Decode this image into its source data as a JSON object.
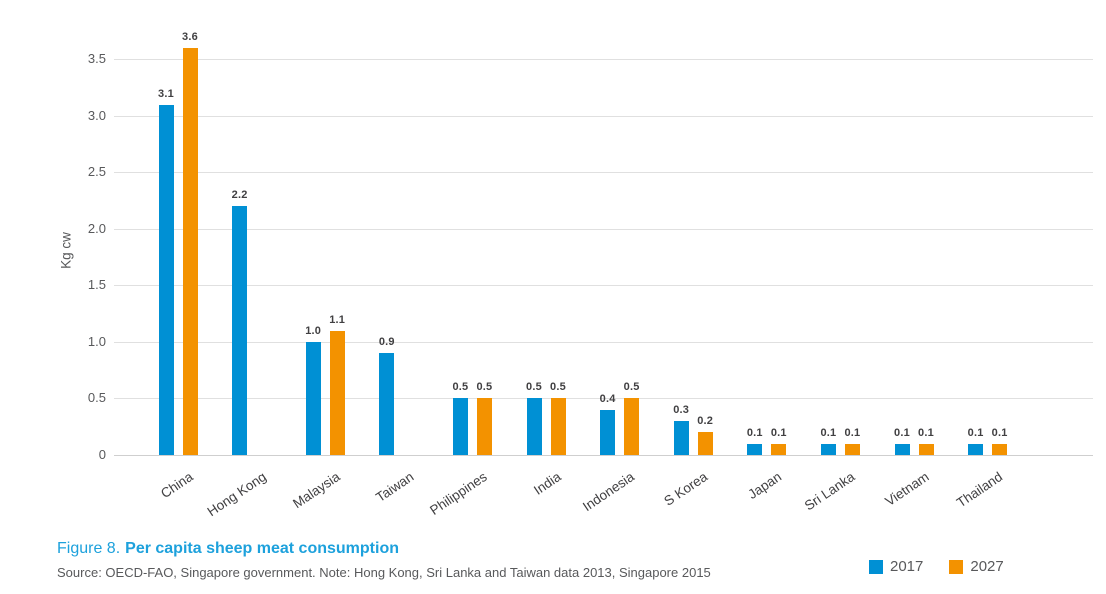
{
  "figure": {
    "caption_prefix": "Figure 8.",
    "caption_title": "Per capita sheep meat consumption",
    "source": "Source: OECD-FAO, Singapore government. Note: Hong Kong, Sri Lanka and Taiwan data 2013, Singapore 2015"
  },
  "chart_data": {
    "type": "bar",
    "title": "Figure 8. Per capita sheep meat consumption",
    "xlabel": "",
    "ylabel": "Kg cw",
    "ylim": [
      0,
      3.75
    ],
    "yticks": [
      0,
      0.5,
      1.0,
      1.5,
      2.0,
      2.5,
      3.0,
      3.5
    ],
    "grid": true,
    "value_labels": true,
    "legend_position": "bottom-right",
    "categories": [
      "China",
      "Hong Kong",
      "Malaysia",
      "Taiwan",
      "Philippines",
      "India",
      "Indonesia",
      "S Korea",
      "Japan",
      "Sri Lanka",
      "Vietnam",
      "Thailand"
    ],
    "series": [
      {
        "name": "2017",
        "color": "#0090d4",
        "values": [
          3.1,
          2.2,
          1.0,
          0.9,
          0.5,
          0.5,
          0.4,
          0.3,
          0.1,
          0.1,
          0.1,
          0.1
        ]
      },
      {
        "name": "2027",
        "color": "#f39200",
        "values": [
          3.6,
          null,
          1.1,
          null,
          0.5,
          0.5,
          0.5,
          0.2,
          0.1,
          0.1,
          0.1,
          0.1
        ]
      }
    ]
  },
  "colors": {
    "bar_2017": "#0090d4",
    "bar_2027": "#f39200",
    "gridline": "#e0e0e0",
    "zero_axis": "#cfcfcf",
    "tick_text": "#58595b",
    "value_text": "#414042",
    "category_text": "#414042",
    "caption_blue": "#1da1dc",
    "source_text": "#58595b"
  }
}
